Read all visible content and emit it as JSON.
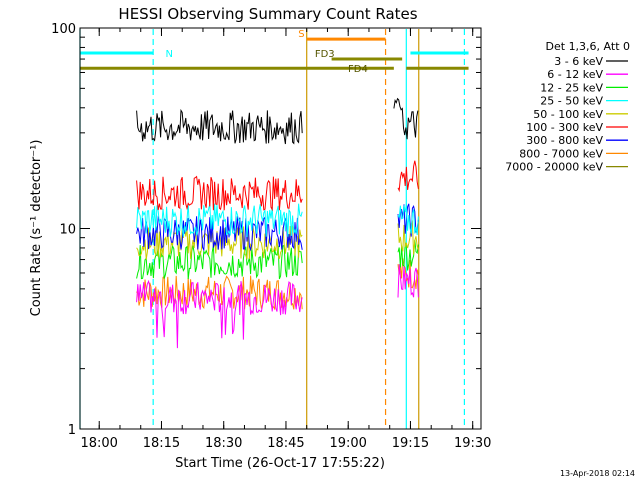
{
  "chart_data": {
    "type": "line",
    "title": "HESSI Observing Summary Count Rates",
    "xlabel": "Start Time (26-Oct-17 17:55:22)",
    "ylabel": "Count Rate (s⁻¹ detector⁻¹)",
    "y_scale": "log",
    "ylim": [
      1,
      100
    ],
    "xlim": [
      "17:55:22",
      "19:32:00"
    ],
    "x_ticks": [
      "18:00",
      "18:15",
      "18:30",
      "18:45",
      "19:00",
      "19:15",
      "19:30"
    ],
    "y_ticks": [
      "1",
      "10",
      "100"
    ],
    "legend": {
      "title": "Det 1,3,6, Att 0",
      "placement": "right"
    },
    "series": [
      {
        "name": "3 - 6 keV",
        "color": "#000000",
        "segments": [
          {
            "start": "18:09",
            "end": "18:49",
            "level": 32
          },
          {
            "start": "19:11",
            "end": "19:17",
            "level": 33,
            "peak": 46
          }
        ]
      },
      {
        "name": "6 - 12 keV",
        "color": "#ff00ff",
        "segments": [
          {
            "start": "18:09",
            "end": "18:49",
            "level": 4.5,
            "dips_to": 2.6
          },
          {
            "start": "19:12",
            "end": "19:17",
            "level": 5.5
          }
        ]
      },
      {
        "name": "12 - 25 keV",
        "color": "#00ee00",
        "segments": [
          {
            "start": "18:09",
            "end": "18:49",
            "level": 6.8
          },
          {
            "start": "19:12",
            "end": "19:17",
            "level": 7.5
          }
        ]
      },
      {
        "name": "25 - 50 keV",
        "color": "#00ffff",
        "segments": [
          {
            "start": "18:09",
            "end": "18:49",
            "level": 11
          },
          {
            "start": "19:12",
            "end": "19:17",
            "level": 11
          }
        ]
      },
      {
        "name": "50 - 100 keV",
        "color": "#cccc00",
        "segments": [
          {
            "start": "18:09",
            "end": "18:49",
            "level": 8.5
          },
          {
            "start": "19:12",
            "end": "19:17",
            "level": 9
          }
        ]
      },
      {
        "name": "100 - 300 keV",
        "color": "#ff0000",
        "segments": [
          {
            "start": "18:09",
            "end": "18:49",
            "level": 15
          },
          {
            "start": "19:12",
            "end": "19:17",
            "level": 18
          }
        ]
      },
      {
        "name": "300 - 800 keV",
        "color": "#0000ff",
        "segments": [
          {
            "start": "18:09",
            "end": "18:49",
            "level": 9.5
          },
          {
            "start": "19:12",
            "end": "19:17",
            "level": 11
          }
        ]
      },
      {
        "name": "800 - 7000 keV",
        "color": "#ff8800",
        "segments": [
          {
            "start": "18:09",
            "end": "18:49",
            "level": 4.8
          },
          {
            "start": "19:12",
            "end": "19:17",
            "level": 6
          }
        ]
      },
      {
        "name": "7000 - 20000 keV",
        "color": "#888800",
        "segments": []
      }
    ],
    "flags": [
      {
        "label": "N",
        "color": "#00ffff",
        "level": 75,
        "start": "17:55:22",
        "end": "18:13",
        "label_at": "18:15"
      },
      {
        "label": "",
        "color": "#00ffff",
        "level": 75,
        "start": "19:15",
        "end": "19:29",
        "label_at": ""
      },
      {
        "label": "S",
        "color": "#ff8800",
        "level": 88,
        "start": "18:50",
        "end": "19:09",
        "label_at": "18:47"
      },
      {
        "label": "FD3",
        "color": "#888800",
        "level": 70,
        "start": "18:56",
        "end": "19:13",
        "label_at": "18:51"
      },
      {
        "label": "FD4",
        "color": "#888800",
        "level": 63,
        "start": "17:55:22",
        "end": "19:11",
        "label_at": "18:59"
      },
      {
        "label": "",
        "color": "#888800",
        "level": 63,
        "start": "19:14",
        "end": "19:29",
        "label_at": ""
      }
    ],
    "vlines": [
      {
        "t": "17:55:22",
        "color": "#00ffff",
        "dash": false
      },
      {
        "t": "18:13",
        "color": "#00ffff",
        "dash": true
      },
      {
        "t": "18:50",
        "color": "#cc9900",
        "dash": false
      },
      {
        "t": "19:09",
        "color": "#ff8800",
        "dash": true
      },
      {
        "t": "19:14",
        "color": "#00ffff",
        "dash": false
      },
      {
        "t": "19:17",
        "color": "#cc9900",
        "dash": false
      },
      {
        "t": "19:28",
        "color": "#00ffff",
        "dash": true
      }
    ]
  },
  "footer": {
    "date_stamp": "13-Apr-2018 02:14"
  }
}
